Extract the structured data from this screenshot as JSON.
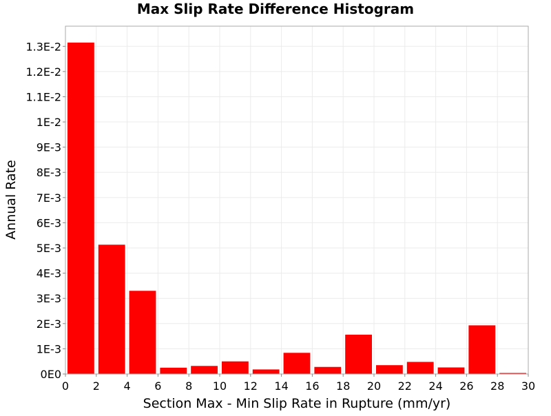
{
  "chart_data": {
    "type": "bar",
    "title": "Max Slip Rate Difference Histogram",
    "xlabel": "Section Max - Min Slip Rate in Rupture (mm/yr)",
    "ylabel": "Annual Rate",
    "xlim": [
      0,
      30
    ],
    "ylim": [
      0,
      0.0138
    ],
    "bin_width": 2,
    "grid": true,
    "legend": "none",
    "bar_color": "#ff0000",
    "x_ticks": [
      "0",
      "2",
      "4",
      "6",
      "8",
      "10",
      "12",
      "14",
      "16",
      "18",
      "20",
      "22",
      "24",
      "26",
      "28",
      "30"
    ],
    "y_ticks": [
      "0E0",
      "1E-3",
      "2E-3",
      "3E-3",
      "4E-3",
      "5E-3",
      "6E-3",
      "7E-3",
      "8E-3",
      "9E-3",
      "1E-2",
      "1.1E-2",
      "1.2E-2",
      "1.3E-2"
    ],
    "x": [
      1,
      3,
      5,
      7,
      9,
      11,
      13,
      15,
      17,
      19,
      21,
      23,
      25,
      27,
      29
    ],
    "values": [
      0.01315,
      0.00513,
      0.0033,
      0.00025,
      0.00032,
      0.0005,
      0.00018,
      0.00084,
      0.00028,
      0.00156,
      0.00035,
      0.00048,
      0.00026,
      0.00193,
      4e-05
    ]
  }
}
